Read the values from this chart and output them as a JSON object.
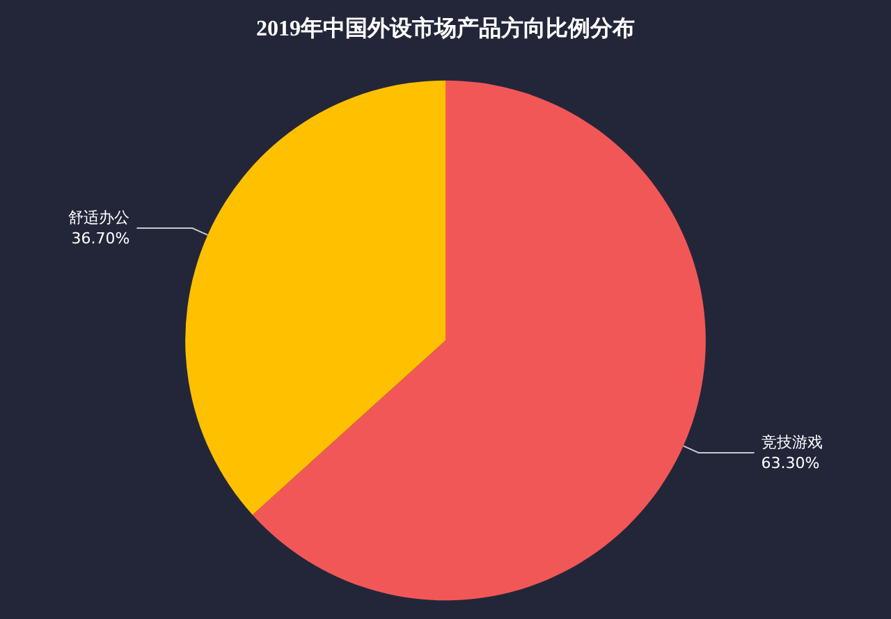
{
  "chart_data": {
    "type": "pie",
    "title": "2019年中国外设市场产品方向比例分布",
    "categories": [
      "竞技游戏",
      "舒适办公"
    ],
    "values": [
      63.3,
      36.7
    ],
    "value_labels": [
      "63.30%",
      "36.70%"
    ],
    "colors": [
      "#f25757",
      "#ffc000"
    ]
  }
}
